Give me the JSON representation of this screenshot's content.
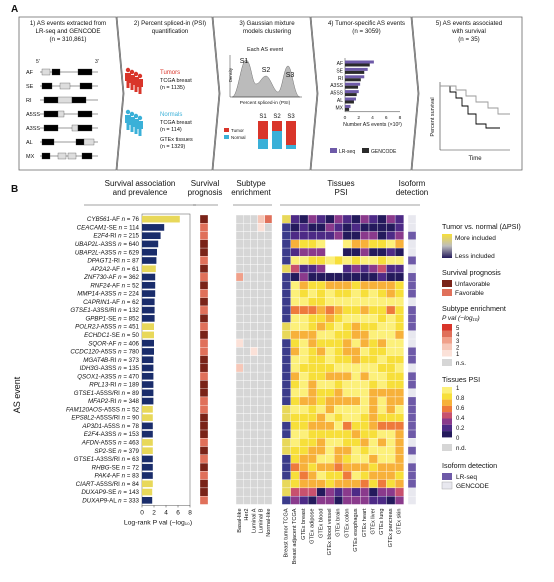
{
  "panel_a": {
    "label": "A",
    "steps": [
      {
        "title": [
          "1) AS events extracted from",
          "LR-seq and GENCODE",
          "(n = 310,861)"
        ],
        "exons": [
          "AF",
          "SE",
          "RI",
          "A5SS",
          "A3SS",
          "AL",
          "MX"
        ],
        "end5": "5'",
        "end3": "3'"
      },
      {
        "title": [
          "2) Percent spliced-in (PSI)",
          "quantification"
        ],
        "tumors": {
          "label": "Tumors",
          "src": "TCGA breast",
          "n": "(n = 1135)"
        },
        "normals": {
          "label": "Normals",
          "src1": "TCGA breast",
          "n1": "(n = 114)",
          "src2": "GTEx tissues",
          "n2": "(n = 1329)"
        }
      },
      {
        "title": [
          "3) Gaussian mixture",
          "models clustering"
        ],
        "each_event": "Each AS event",
        "clusters": [
          "S1",
          "S2",
          "S3"
        ],
        "xlabel": "Percent spliced-in (PSI)",
        "ylabel": "Density",
        "legend": [
          "Tumor",
          "Normal"
        ]
      },
      {
        "title": [
          "4) Tumor-specific AS events",
          "(n = 3059)"
        ],
        "categories": [
          "AF",
          "SE",
          "RI",
          "A3SS",
          "A5SS",
          "AL",
          "MX"
        ],
        "lr": [
          4.2,
          3.3,
          2.8,
          2.2,
          2.0,
          1.6,
          0.8
        ],
        "gc": [
          3.6,
          2.8,
          2.3,
          1.9,
          1.7,
          1.3,
          0.6
        ],
        "ticks": [
          "0",
          "2",
          "4",
          "6",
          "8"
        ],
        "xlabel": "Number AS events (×10²)",
        "legend": [
          "LR-seq",
          "GENCODE"
        ]
      },
      {
        "title": [
          "5) AS events associated",
          "with survival",
          "(n = 35)"
        ],
        "ylabel": "Percent survival",
        "xlabel": "Time"
      }
    ]
  },
  "panel_b": {
    "label": "B",
    "row_axis_label": "AS event",
    "col_headers": {
      "survival": [
        "Survival association",
        "and prevalence"
      ],
      "prognosis": [
        "Survival",
        "prognosis"
      ],
      "subtype": [
        "Subtype",
        "enrichment"
      ],
      "tissues": [
        "Tissues",
        "PSI"
      ],
      "isoform": [
        "Isoform",
        "detection"
      ]
    },
    "events": [
      {
        "gene": "CYB561",
        "type": "AF",
        "n": "76"
      },
      {
        "gene": "CEACAM1",
        "type": "SE",
        "n": "114"
      },
      {
        "gene": "E2F4",
        "type": "RI",
        "n": "215"
      },
      {
        "gene": "UBAP2L",
        "type": "A3SS",
        "n": "640"
      },
      {
        "gene": "UBAP2L",
        "type": "A3SS",
        "n": "629"
      },
      {
        "gene": "DPAGT1",
        "type": "RI",
        "n": "87"
      },
      {
        "gene": "AP2A2",
        "type": "AF",
        "n": "61"
      },
      {
        "gene": "ZNF730",
        "type": "AF",
        "n": "362"
      },
      {
        "gene": "RNF24",
        "type": "AF",
        "n": "52"
      },
      {
        "gene": "MMP14",
        "type": "A3SS",
        "n": "224"
      },
      {
        "gene": "CAPRIN1",
        "type": "AF",
        "n": "62"
      },
      {
        "gene": "GTSE1",
        "type": "A3SS/RI",
        "n": "132"
      },
      {
        "gene": "GPBP1",
        "type": "SE",
        "n": "852"
      },
      {
        "gene": "POLR2J",
        "type": "A5SS",
        "n": "451"
      },
      {
        "gene": "ECHDC1",
        "type": "SE",
        "n": "50"
      },
      {
        "gene": "SQOR",
        "type": "AF",
        "n": "406"
      },
      {
        "gene": "CCDC120",
        "type": "A5SS",
        "n": "780"
      },
      {
        "gene": "MGAT4B",
        "type": "RI",
        "n": "373"
      },
      {
        "gene": "IDH3G",
        "type": "A3SS",
        "n": "135"
      },
      {
        "gene": "QSOX1",
        "type": "A3SS",
        "n": "470"
      },
      {
        "gene": "RPL13",
        "type": "RI",
        "n": "189"
      },
      {
        "gene": "GTSE1",
        "type": "A5SS/RI",
        "n": "89"
      },
      {
        "gene": "MFAP2",
        "type": "RI",
        "n": "348"
      },
      {
        "gene": "FAM120AOS",
        "type": "A5SS",
        "n": "52"
      },
      {
        "gene": "EPS8L2",
        "type": "A5SS/RI",
        "n": "90"
      },
      {
        "gene": "AP3D1",
        "type": "A5SS",
        "n": "78"
      },
      {
        "gene": "E2F4",
        "type": "A3SS",
        "n": "153"
      },
      {
        "gene": "AFDN",
        "type": "A5SS",
        "n": "463"
      },
      {
        "gene": "SP2",
        "type": "SE",
        "n": "379"
      },
      {
        "gene": "GTSE1",
        "type": "A3SS/RI",
        "n": "63"
      },
      {
        "gene": "RHBG",
        "type": "SE",
        "n": "72"
      },
      {
        "gene": "PAK4",
        "type": "AF",
        "n": "83"
      },
      {
        "gene": "CIART",
        "type": "A5SS/RI",
        "n": "84"
      },
      {
        "gene": "DUXAP9",
        "type": "SE",
        "n": "143"
      },
      {
        "gene": "DUXAP9",
        "type": "AL",
        "n": "333"
      }
    ],
    "n_prefix": "n =",
    "survival_bars": {
      "values": [
        6.3,
        3.7,
        3.1,
        2.7,
        2.5,
        2.4,
        2.3,
        2.2,
        2.2,
        2.2,
        2.1,
        2.1,
        2.1,
        2.0,
        2.0,
        2.0,
        2.0,
        1.9,
        1.9,
        1.9,
        1.9,
        1.9,
        1.9,
        1.8,
        1.8,
        1.8,
        1.8,
        1.8,
        1.8,
        1.8,
        1.8,
        1.8,
        1.8,
        1.7,
        1.7
      ],
      "colors": [
        "#e8d85a",
        "#1a2d6b",
        "#1a2d6b",
        "#1a2d6b",
        "#1a2d6b",
        "#1a2d6b",
        "#e8d85a",
        "#1a2d6b",
        "#1a2d6b",
        "#1a2d6b",
        "#1a2d6b",
        "#1a2d6b",
        "#1a2d6b",
        "#e8d85a",
        "#e8d85a",
        "#1a2d6b",
        "#1a2d6b",
        "#1a2d6b",
        "#1a2d6b",
        "#1a2d6b",
        "#1a2d6b",
        "#1a2d6b",
        "#1a2d6b",
        "#e8d85a",
        "#e8d85a",
        "#1a2d6b",
        "#1a2d6b",
        "#e8d85a",
        "#e8d85a",
        "#1a2d6b",
        "#1a2d6b",
        "#1a2d6b",
        "#e8d85a",
        "#e8d85a",
        "#1a2d6b"
      ],
      "ticks": [
        "0",
        "2",
        "4",
        "6",
        "8"
      ],
      "xlabel": "Log-rank P val (−log₁₀)"
    },
    "prognosis": [
      "U",
      "F",
      "F",
      "U",
      "U",
      "F",
      "U",
      "F",
      "U",
      "F",
      "U",
      "F",
      "U",
      "F",
      "U",
      "F",
      "F",
      "U",
      "U",
      "F",
      "U",
      "U",
      "F",
      "F",
      "U",
      "U",
      "U",
      "F",
      "U",
      "F",
      "U",
      "F",
      "U",
      "U",
      "F"
    ],
    "subtypes": [
      "Basal-like",
      "Her2",
      "Luminal A",
      "Luminal B",
      "Normal-like"
    ],
    "tissues": [
      "Breast tumor TCGA",
      "Breast adjacent TCGA",
      "GTEx breast",
      "GTEx adipose",
      "GTEx blood",
      "GTEx blood vessel",
      "GTEx brain",
      "GTEx colon",
      "GTEx esophagus",
      "GTEx heart",
      "GTEx liver",
      "GTEx lung",
      "GTEx pancreas",
      "GTEx skin"
    ],
    "legend": {
      "dpsi_title": "Tumor vs. normal (ΔPSI)",
      "dpsi_high": "More included",
      "dpsi_low": "Less included",
      "prog_title": "Survival prognosis",
      "prog_items": [
        "Unfavorable",
        "Favorable"
      ],
      "sub_title": "Subtype enrichment",
      "sub_sub": "P val (−log₁₀)",
      "sub_ticks": [
        "5",
        "4",
        "3",
        "2",
        "1"
      ],
      "sub_ns": "n.s.",
      "tis_title": "Tissues PSI",
      "tis_ticks": [
        "1",
        "0.8",
        "0.6",
        "0.4",
        "0.2",
        "0"
      ],
      "tis_nd": "n.d.",
      "iso_title": "Isoform detection",
      "iso_items": [
        "LR-seq",
        "GENCODE"
      ]
    },
    "colors": {
      "navy": "#1a2d6b",
      "yellow": "#e8d85a",
      "unfavorable": "#7a2318",
      "favorable": "#e0705a",
      "lrseq": "#6e5aa8",
      "gencode": "#e8e8ef",
      "ns": "#d6d6d6"
    }
  }
}
